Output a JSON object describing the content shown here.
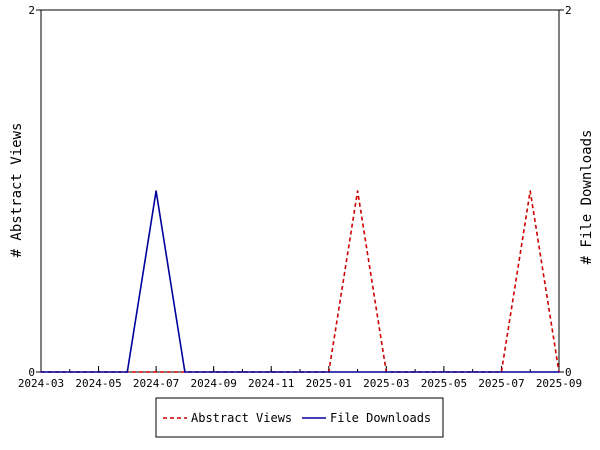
{
  "chart_data": {
    "type": "line",
    "x_ticks": [
      "2024-03",
      "2024-05",
      "2024-07",
      "2024-09",
      "2024-11",
      "2025-01",
      "2025-03",
      "2025-05",
      "2025-07",
      "2025-09"
    ],
    "x_range": [
      "2024-03",
      "2025-09"
    ],
    "y_left": {
      "label": "# Abstract Views",
      "ticks": [
        "0",
        "2"
      ],
      "range": [
        0,
        2
      ]
    },
    "y_right": {
      "label": "# File Downloads",
      "ticks": [
        "0",
        "2"
      ],
      "range": [
        0,
        2
      ]
    },
    "series": [
      {
        "name": "Abstract Views",
        "axis": "left",
        "color": "#cc0000",
        "dash": true,
        "points": [
          {
            "x": "2024-03",
            "y": 0
          },
          {
            "x": "2025-01",
            "y": 0
          },
          {
            "x": "2025-02",
            "y": 1
          },
          {
            "x": "2025-03",
            "y": 0
          },
          {
            "x": "2025-07",
            "y": 0
          },
          {
            "x": "2025-08",
            "y": 1
          },
          {
            "x": "2025-09",
            "y": 0
          }
        ]
      },
      {
        "name": "File Downloads",
        "axis": "right",
        "color": "#00009a",
        "dash": false,
        "points": [
          {
            "x": "2024-03",
            "y": 0
          },
          {
            "x": "2024-06",
            "y": 0
          },
          {
            "x": "2024-07",
            "y": 1
          },
          {
            "x": "2024-08",
            "y": 0
          },
          {
            "x": "2025-09",
            "y": 0
          }
        ]
      }
    ],
    "grid": false,
    "legend_position": "bottom"
  }
}
